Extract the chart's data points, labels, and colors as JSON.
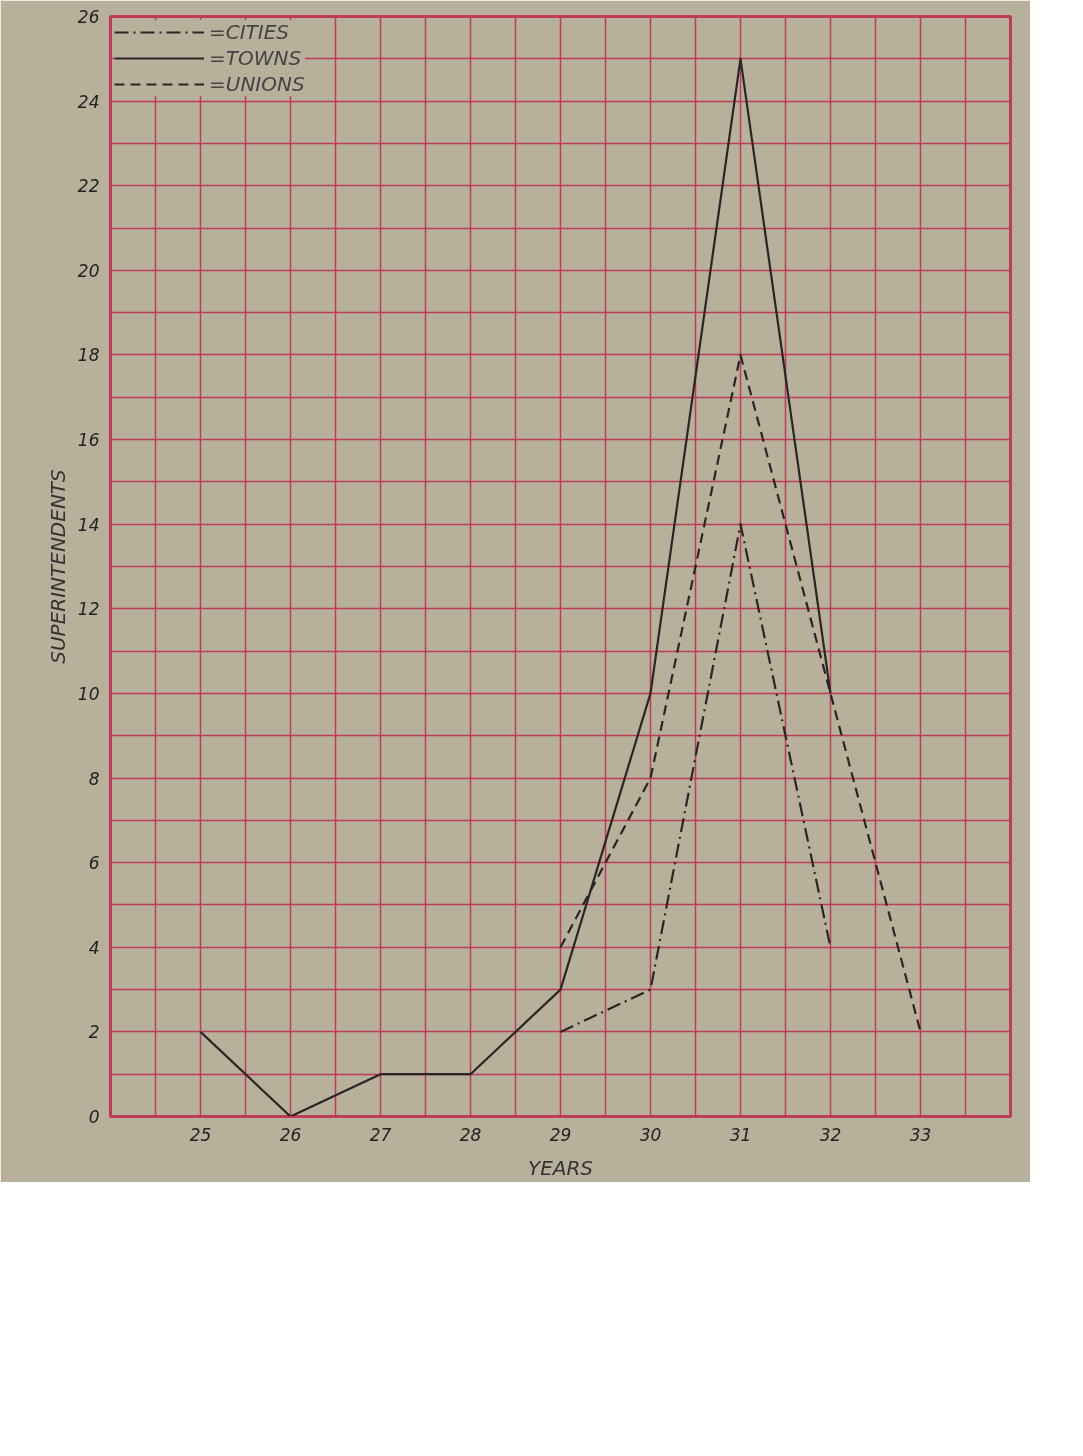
{
  "chart_data": {
    "type": "line",
    "xlabel": "YEARS",
    "ylabel": "SUPERINTENDENTS",
    "xlim": [
      24,
      34
    ],
    "ylim": [
      0,
      26
    ],
    "xticks": [
      {
        "value": 24.5,
        "label": null
      },
      25,
      {
        "value": 25.5,
        "label": null
      },
      26,
      {
        "value": 26.5,
        "label": null
      },
      27,
      {
        "value": 27.5,
        "label": null
      },
      28,
      {
        "value": 28.5,
        "label": null
      },
      29,
      {
        "value": 29.5,
        "label": null
      },
      30,
      {
        "value": 30.5,
        "label": null
      },
      31,
      {
        "value": 31.5,
        "label": null
      },
      32,
      {
        "value": 32.5,
        "label": null
      },
      33,
      {
        "value": 33.5,
        "label": null
      }
    ],
    "yticks": [
      0,
      {
        "value": 1,
        "label": null
      },
      2,
      {
        "value": 3,
        "label": null
      },
      4,
      {
        "value": 5,
        "label": null
      },
      6,
      {
        "value": 7,
        "label": null
      },
      8,
      {
        "value": 9,
        "label": null
      },
      10,
      {
        "value": 11,
        "label": null
      },
      12,
      {
        "value": 13,
        "label": null
      },
      14,
      {
        "value": 15,
        "label": null
      },
      16,
      {
        "value": 17,
        "label": null
      },
      18,
      {
        "value": 19,
        "label": null
      },
      20,
      {
        "value": 21,
        "label": null
      },
      22,
      {
        "value": 23,
        "label": null
      },
      24,
      {
        "value": 25,
        "label": null
      },
      26
    ],
    "grid": true,
    "legend": "top left",
    "marker": "none",
    "series": [
      {
        "name": "=CITIES",
        "color": "#2a2626",
        "line_style": "dashdot",
        "x": [
          29,
          30,
          31,
          32
        ],
        "values": [
          2,
          3,
          14,
          4
        ]
      },
      {
        "name": "=TOWNS",
        "color": "#2a2626",
        "line_style": "solid",
        "x": [
          25,
          26,
          27,
          28,
          29,
          30,
          31,
          32
        ],
        "values": [
          2,
          0,
          1,
          1,
          3,
          10,
          25,
          10
        ]
      },
      {
        "name": "=UNIONS",
        "color": "#2a2626",
        "line_style": "dashed",
        "x": [
          29,
          30,
          31,
          33
        ],
        "values": [
          4,
          8,
          18,
          2
        ]
      }
    ]
  }
}
